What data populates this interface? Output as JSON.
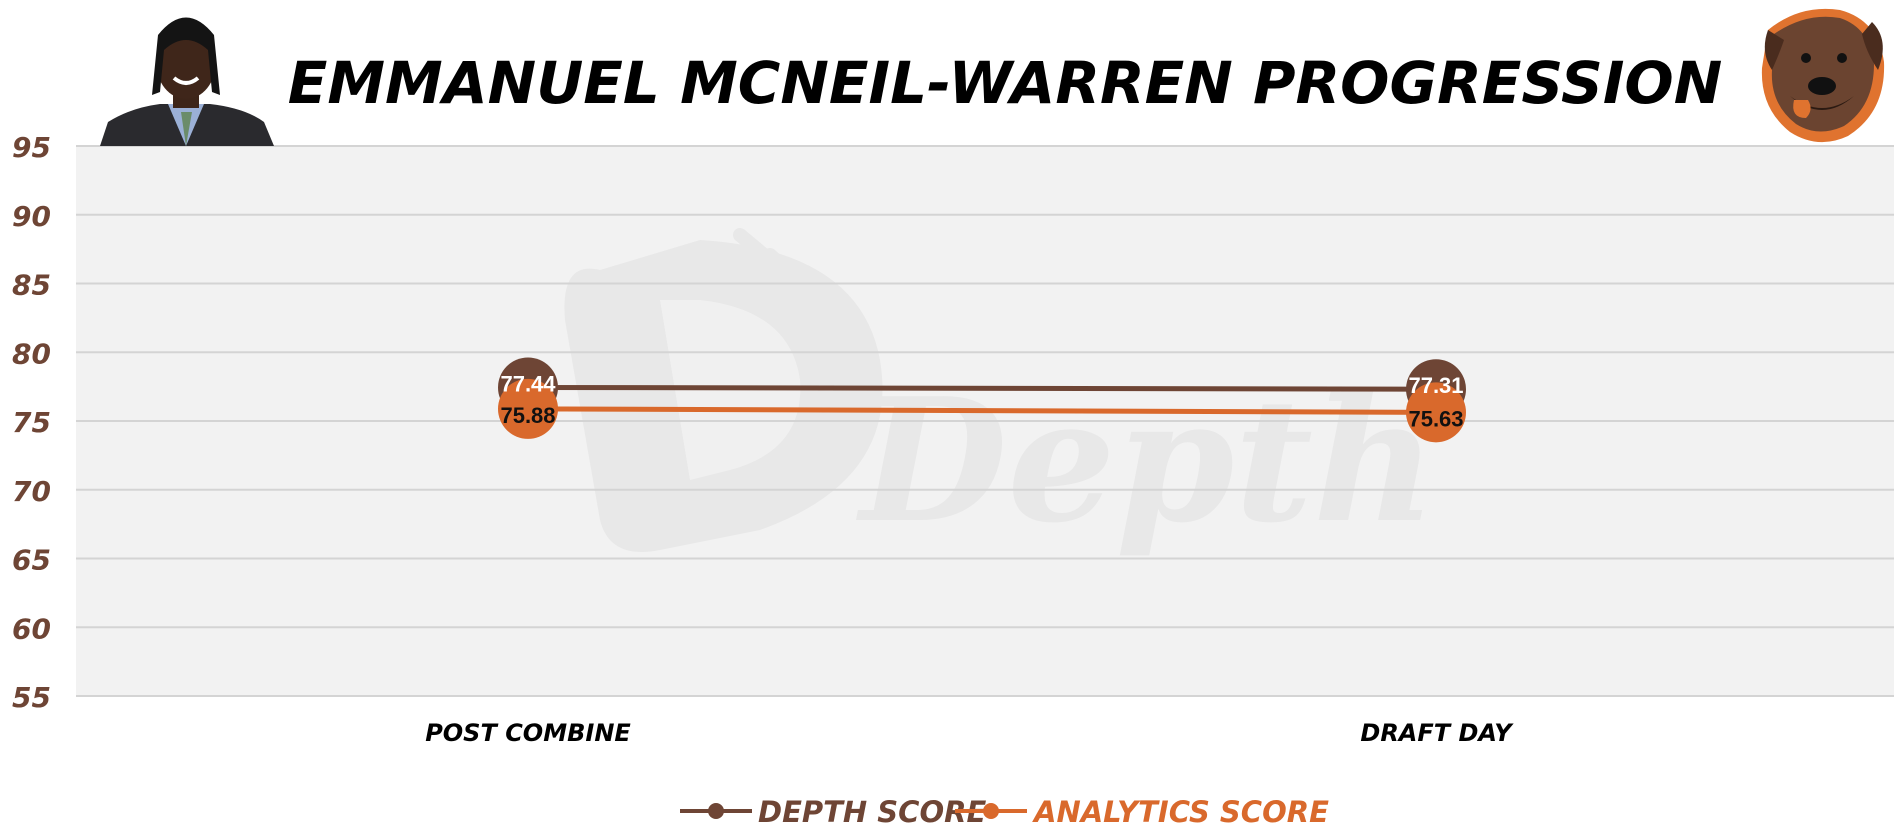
{
  "page": {
    "title": "EMMANUEL MCNEIL-WARREN PROGRESSION",
    "watermark_text": "Depth"
  },
  "icons": {
    "player_photo": "player-headshot-icon",
    "team_logo": "dog-mascot-logo-icon"
  },
  "colors": {
    "depth": "#6e4535",
    "analytics": "#d9692c",
    "plot_bg": "#f2f2f2",
    "grid": "#d4d4d4",
    "title": "#000000",
    "tick": "#6e4535"
  },
  "chart_data": {
    "type": "line",
    "title": "EMMANUEL MCNEIL-WARREN PROGRESSION",
    "categories": [
      "POST COMBINE",
      "DRAFT DAY"
    ],
    "ylim": [
      55,
      95
    ],
    "yticks": [
      95,
      90,
      85,
      80,
      75,
      70,
      65,
      60,
      55
    ],
    "grid": true,
    "legend_position": "bottom-center",
    "series": [
      {
        "name": "DEPTH SCORE",
        "color": "#6e4535",
        "values": [
          77.44,
          77.31
        ],
        "labels": [
          "77.44",
          "77.31"
        ]
      },
      {
        "name": "ANALYTICS SCORE",
        "color": "#d9692c",
        "values": [
          75.88,
          75.63
        ],
        "labels": [
          "75.88",
          "75.63"
        ]
      }
    ]
  }
}
